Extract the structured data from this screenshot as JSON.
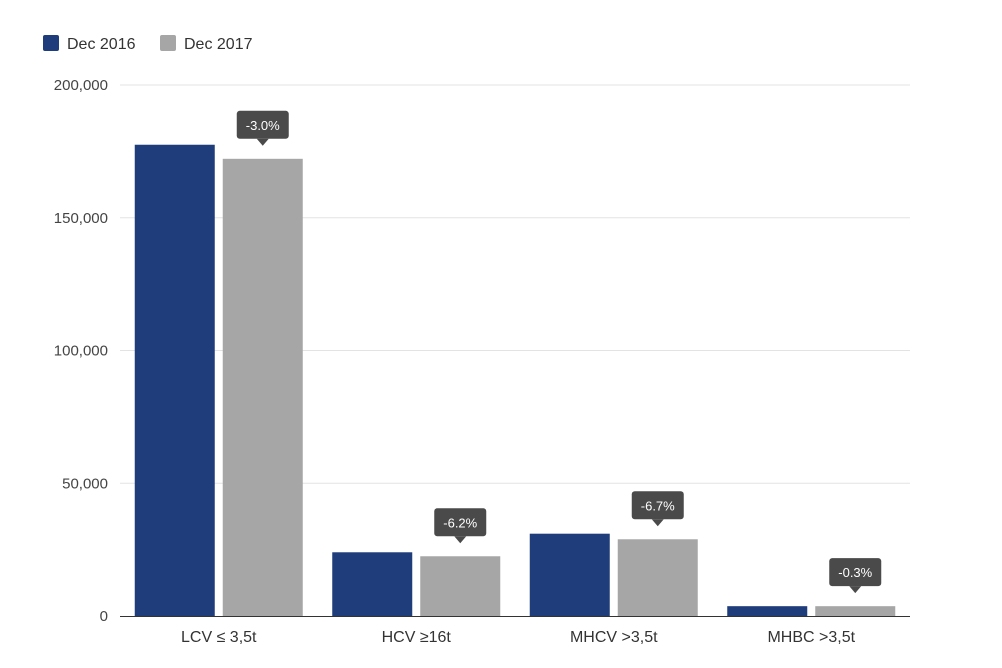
{
  "chart_data": {
    "type": "bar",
    "categories": [
      "LCV ≤ 3,5t",
      "HCV ≥16t",
      "MHCV >3,5t",
      "MHBC >3,5t"
    ],
    "series": [
      {
        "name": "Dec 2016",
        "color": "#1f3d7a",
        "values": [
          177500,
          24000,
          31000,
          3700
        ]
      },
      {
        "name": "Dec 2017",
        "color": "#a6a6a6",
        "values": [
          172200,
          22500,
          28900,
          3700
        ]
      }
    ],
    "annotations": [
      "-3.0%",
      "-6.2%",
      "-6.7%",
      "-0.3%"
    ],
    "yticks": [
      0,
      50000,
      100000,
      150000,
      200000
    ],
    "ytick_labels": [
      "0",
      "50,000",
      "100,000",
      "150,000",
      "200,000"
    ],
    "ylim": [
      0,
      200000
    ],
    "grid": true,
    "legend_position": "top-left",
    "title": "",
    "xlabel": "",
    "ylabel": ""
  }
}
